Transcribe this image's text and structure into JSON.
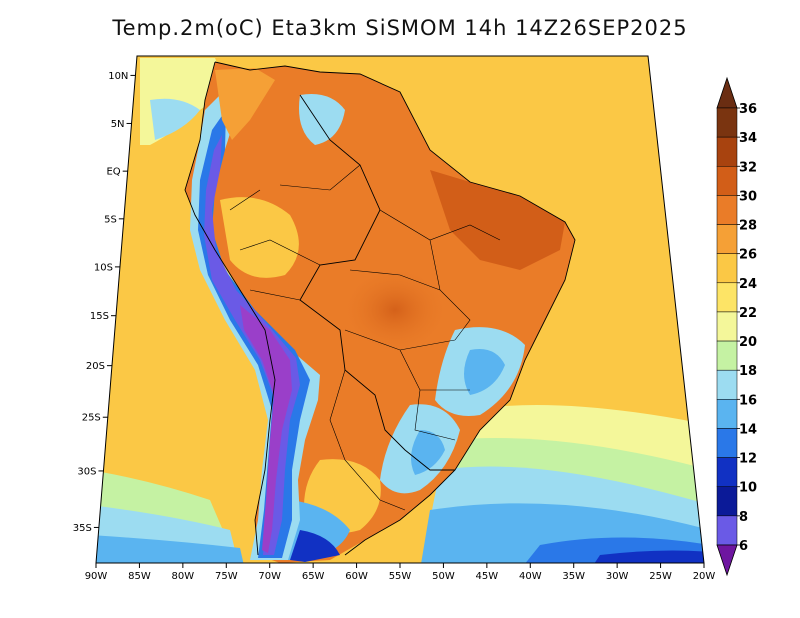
{
  "title": "Temp.2m(oC) Eta3km SiSMOM 14h 14Z26SEP2025",
  "map": {
    "projection": "mercator",
    "region": "South America",
    "lon_range": [
      -90,
      -20
    ],
    "lat_range": [
      -38,
      12
    ],
    "lat_ticks": [
      {
        "value": 10,
        "label": "10N"
      },
      {
        "value": 5,
        "label": "5N"
      },
      {
        "value": 0,
        "label": "EQ"
      },
      {
        "value": -5,
        "label": "5S"
      },
      {
        "value": -10,
        "label": "10S"
      },
      {
        "value": -15,
        "label": "15S"
      },
      {
        "value": -20,
        "label": "20S"
      },
      {
        "value": -25,
        "label": "25S"
      },
      {
        "value": -30,
        "label": "30S"
      },
      {
        "value": -35,
        "label": "35S"
      }
    ],
    "lon_ticks": [
      {
        "value": -90,
        "label": "90W"
      },
      {
        "value": -85,
        "label": "85W"
      },
      {
        "value": -80,
        "label": "80W"
      },
      {
        "value": -75,
        "label": "75W"
      },
      {
        "value": -70,
        "label": "70W"
      },
      {
        "value": -65,
        "label": "65W"
      },
      {
        "value": -60,
        "label": "60W"
      },
      {
        "value": -55,
        "label": "55W"
      },
      {
        "value": -50,
        "label": "50W"
      },
      {
        "value": -45,
        "label": "45W"
      },
      {
        "value": -40,
        "label": "40W"
      },
      {
        "value": -35,
        "label": "35W"
      },
      {
        "value": -30,
        "label": "30W"
      },
      {
        "value": -25,
        "label": "25W"
      },
      {
        "value": -20,
        "label": "20W"
      }
    ]
  },
  "colorbar": {
    "orientation": "vertical",
    "levels": [
      {
        "value": "36",
        "color": "#7a3410"
      },
      {
        "value": "34",
        "color": "#a8430f"
      },
      {
        "value": "32",
        "color": "#d25e18"
      },
      {
        "value": "30",
        "color": "#ea7c28"
      },
      {
        "value": "28",
        "color": "#f5a036"
      },
      {
        "value": "26",
        "color": "#fbc845"
      },
      {
        "value": "24",
        "color": "#fde466"
      },
      {
        "value": "22",
        "color": "#f4f79a"
      },
      {
        "value": "20",
        "color": "#c5f2a3"
      },
      {
        "value": "18",
        "color": "#9cdcf1"
      },
      {
        "value": "16",
        "color": "#5ab4f0"
      },
      {
        "value": "14",
        "color": "#2a78e8"
      },
      {
        "value": "12",
        "color": "#1131c3"
      },
      {
        "value": "10",
        "color": "#0b1a98"
      },
      {
        "value": "8",
        "color": "#6a5ae6"
      },
      {
        "value": "6",
        "color": "#9a3fc9"
      }
    ],
    "over_color": "#6a2d12",
    "under_color": "#6e16a0"
  }
}
